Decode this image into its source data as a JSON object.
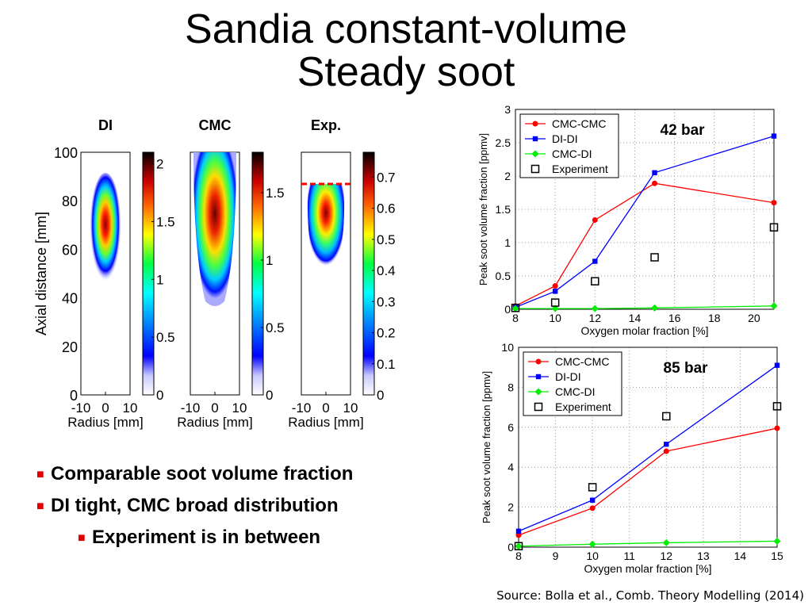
{
  "slide": {
    "title_line1": "Sandia constant-volume",
    "title_line2": "Steady soot",
    "source": "Source: Bolla et al., Comb. Theory Modelling (2014)",
    "bullets": [
      {
        "text": "Comparable soot volume fraction",
        "level": 1
      },
      {
        "text": "DI tight, CMC broad distribution",
        "level": 1
      },
      {
        "text": "Experiment is in between",
        "level": 2
      }
    ]
  },
  "maps": {
    "panels": [
      {
        "label": "DI",
        "colorbar_max": 2.1,
        "colorbar_ticks": [
          "0",
          "0.5",
          "1",
          "1.5",
          "2"
        ],
        "colorbar_tick_values": [
          0,
          0.5,
          1,
          1.5,
          2
        ]
      },
      {
        "label": "CMC",
        "colorbar_max": 1.8,
        "colorbar_ticks": [
          "0",
          "0.5",
          "1",
          "1.5"
        ],
        "colorbar_tick_values": [
          0,
          0.5,
          1,
          1.5
        ]
      },
      {
        "label": "Exp.",
        "colorbar_max": 0.78,
        "colorbar_ticks": [
          "0",
          "0.1",
          "0.2",
          "0.3",
          "0.4",
          "0.5",
          "0.6",
          "0.7"
        ],
        "colorbar_tick_values": [
          0,
          0.1,
          0.2,
          0.3,
          0.4,
          0.5,
          0.6,
          0.7
        ]
      }
    ],
    "ylabel": "Axial distance [mm]",
    "xlabel": "Radius [mm]",
    "y_ticks": [
      "0",
      "20",
      "40",
      "60",
      "80",
      "100"
    ],
    "x_ticks": [
      "-10",
      "0",
      "10"
    ]
  },
  "chart_data": [
    {
      "type": "line",
      "annotation": "42 bar",
      "xlabel": "Oxygen molar fraction [%]",
      "ylabel": "Peak soot volume fraction [ppmv]",
      "xlim": [
        8,
        21
      ],
      "ylim": [
        0,
        3
      ],
      "x_ticks": [
        8,
        10,
        12,
        14,
        16,
        18,
        20
      ],
      "y_ticks": [
        0,
        0.5,
        1,
        1.5,
        2,
        2.5,
        3
      ],
      "y_tick_labels": [
        "0",
        "0.5",
        "1",
        "1.5",
        "2",
        "2.5",
        "3"
      ],
      "grid": true,
      "legend_position": "top-left",
      "series": [
        {
          "name": "CMC-CMC",
          "color": "#ff0000",
          "marker": "circle",
          "x": [
            8,
            10,
            12,
            15,
            21
          ],
          "values": [
            0.05,
            0.35,
            1.34,
            1.89,
            1.6
          ]
        },
        {
          "name": "DI-DI",
          "color": "#0000ff",
          "marker": "square",
          "x": [
            8,
            10,
            12,
            15,
            21
          ],
          "values": [
            0.03,
            0.27,
            0.72,
            2.05,
            2.6
          ]
        },
        {
          "name": "CMC-DI",
          "color": "#00ee00",
          "marker": "diamond",
          "x": [
            8,
            10,
            12,
            15,
            21
          ],
          "values": [
            0.01,
            0.01,
            0.01,
            0.02,
            0.05
          ]
        },
        {
          "name": "Experiment",
          "color": "#000000",
          "marker": "open-square",
          "x": [
            8,
            10,
            12,
            15,
            21
          ],
          "values": [
            0.02,
            0.1,
            0.42,
            0.78,
            1.23
          ]
        }
      ]
    },
    {
      "type": "line",
      "annotation": "85 bar",
      "xlabel": "Oxygen molar fraction [%]",
      "ylabel": "Peak soot volume fraction [ppmv]",
      "xlim": [
        8,
        15
      ],
      "ylim": [
        0,
        10
      ],
      "x_ticks": [
        8,
        9,
        10,
        11,
        12,
        13,
        14,
        15
      ],
      "y_ticks": [
        0,
        2,
        4,
        6,
        8,
        10
      ],
      "y_tick_labels": [
        "0",
        "2",
        "4",
        "6",
        "8",
        "10"
      ],
      "grid": true,
      "legend_position": "top-left",
      "series": [
        {
          "name": "CMC-CMC",
          "color": "#ff0000",
          "marker": "circle",
          "x": [
            8,
            10,
            12,
            15
          ],
          "values": [
            0.6,
            1.95,
            4.8,
            5.95
          ]
        },
        {
          "name": "DI-DI",
          "color": "#0000ff",
          "marker": "square",
          "x": [
            8,
            10,
            12,
            15
          ],
          "values": [
            0.8,
            2.35,
            5.15,
            9.1
          ]
        },
        {
          "name": "CMC-DI",
          "color": "#00ee00",
          "marker": "diamond",
          "x": [
            8,
            10,
            12,
            15
          ],
          "values": [
            0.05,
            0.15,
            0.22,
            0.3
          ]
        },
        {
          "name": "Experiment",
          "color": "#000000",
          "marker": "open-square",
          "x": [
            8,
            10,
            12,
            15
          ],
          "values": [
            0.05,
            3.0,
            6.55,
            7.05
          ]
        }
      ]
    }
  ]
}
